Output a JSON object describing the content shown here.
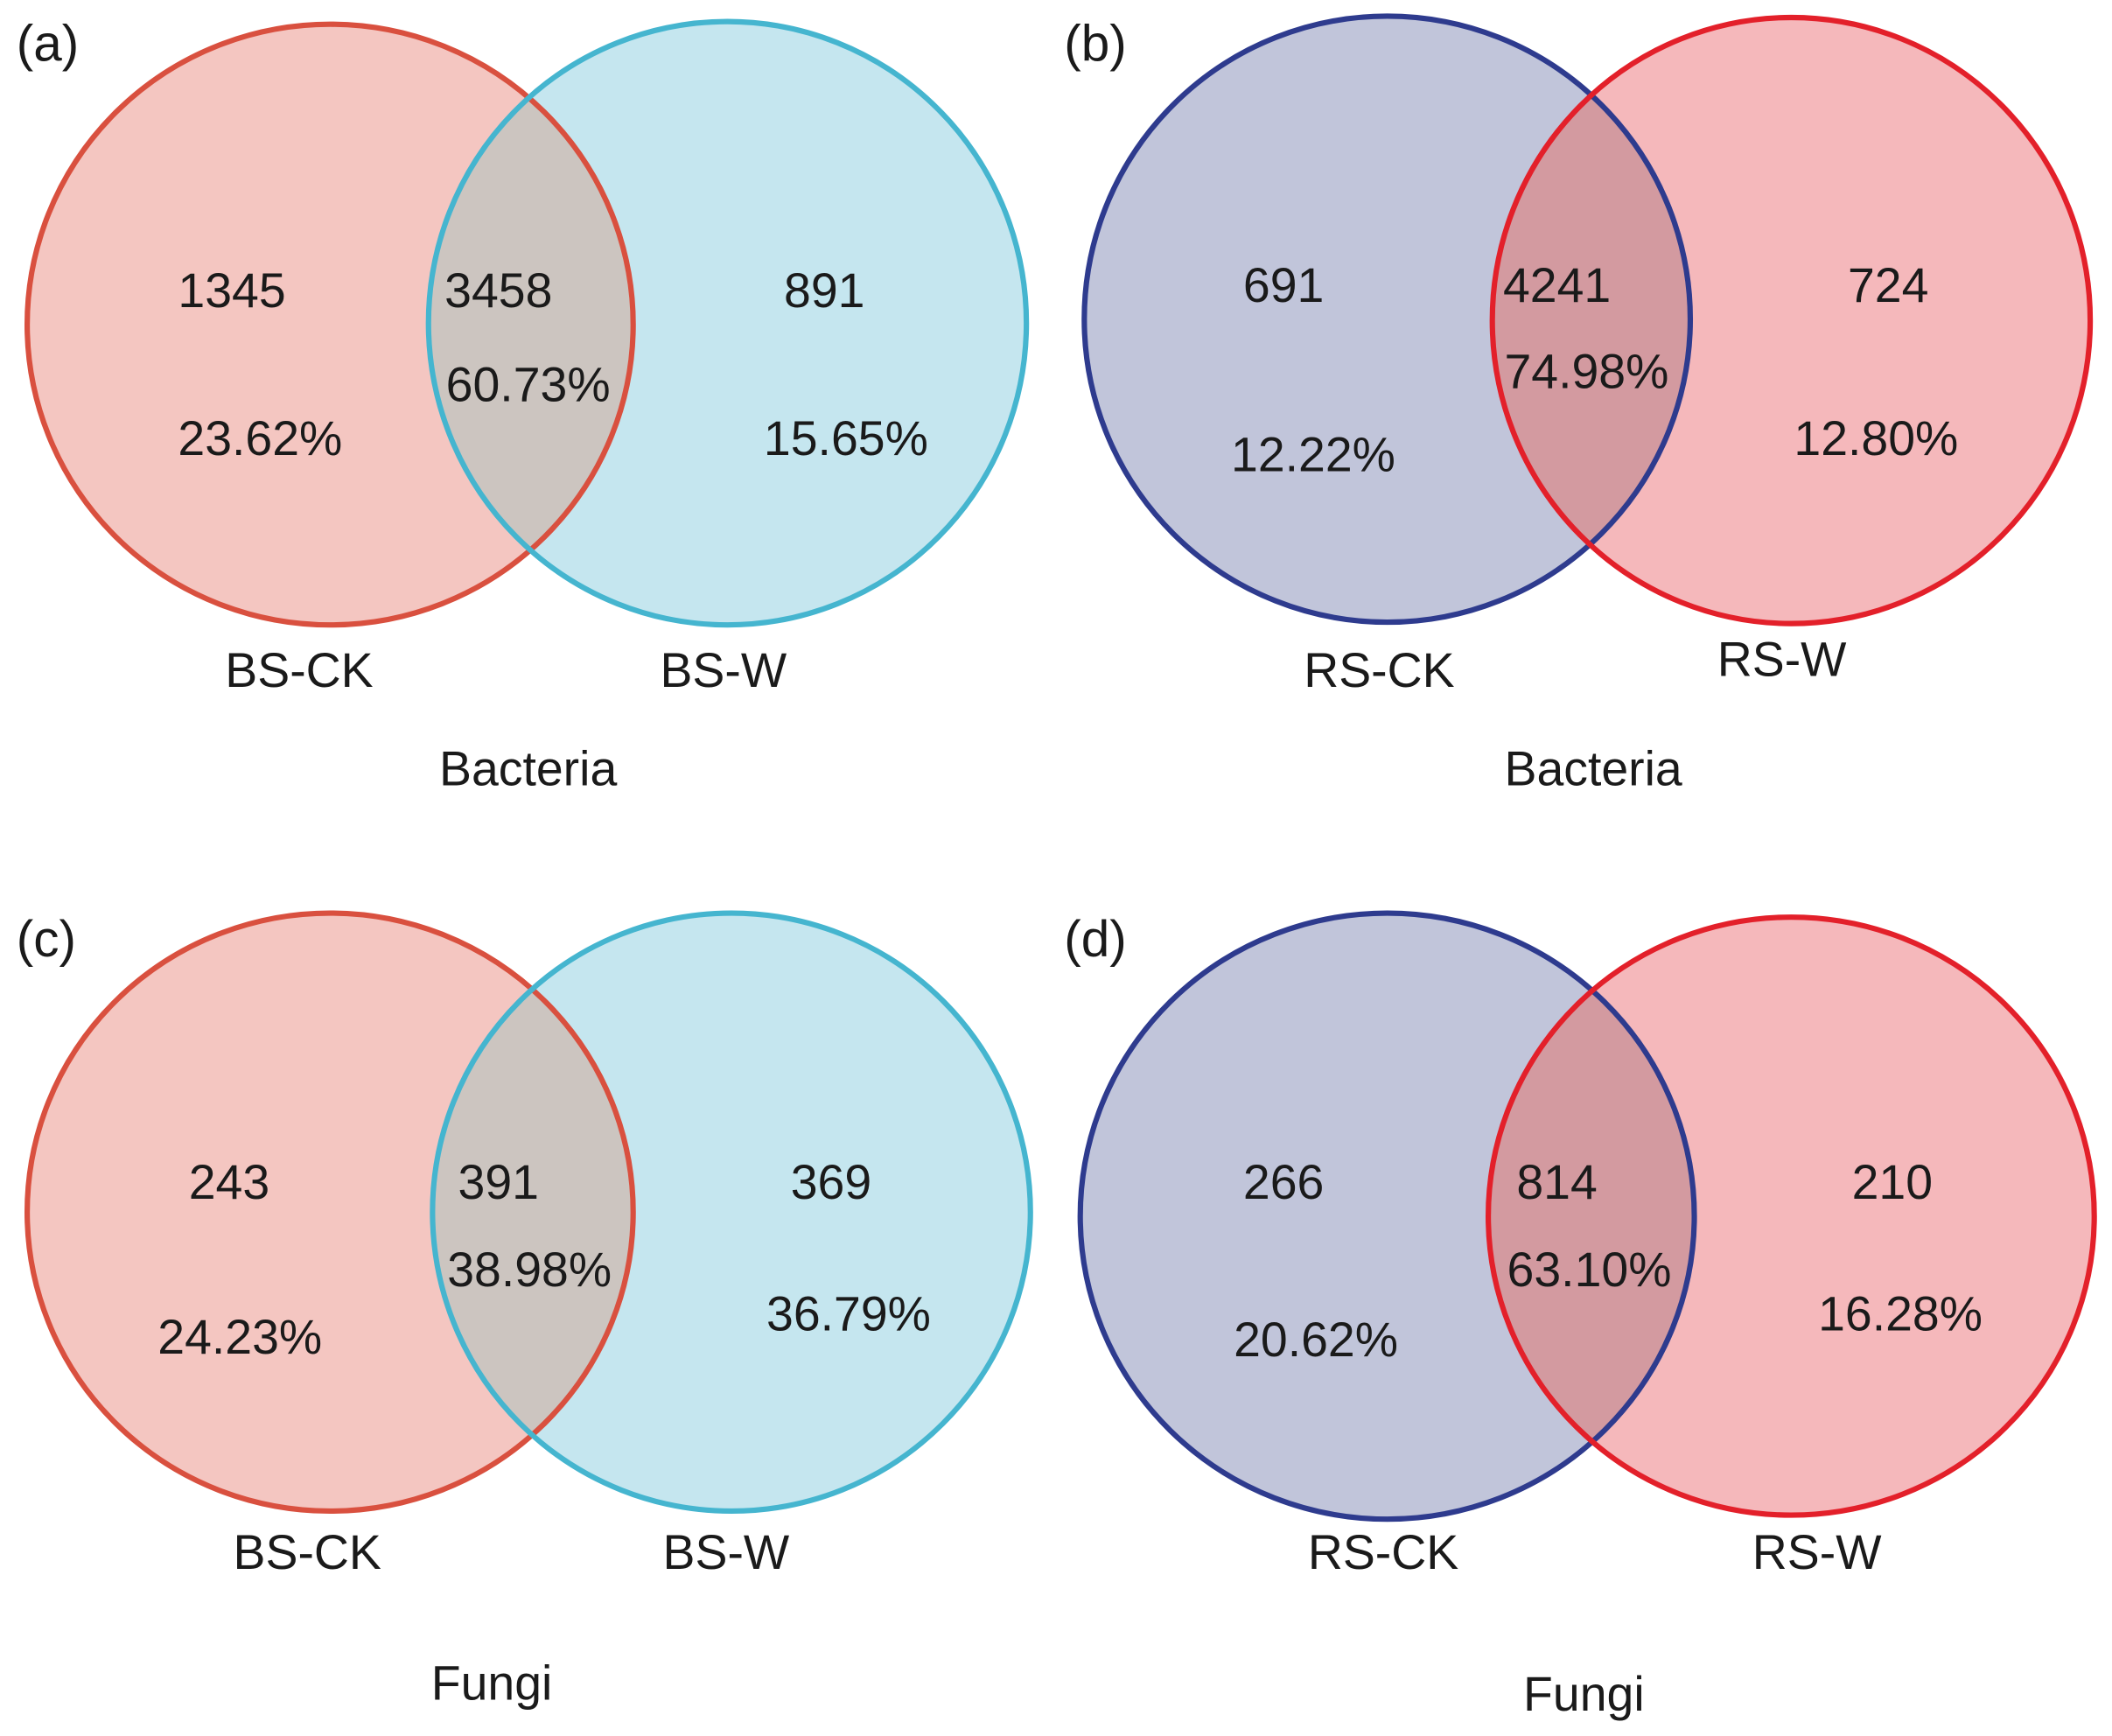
{
  "panels": [
    {
      "tag": "(a)",
      "left_label": "BS-CK",
      "right_label": "BS-W",
      "caption": "Bacteria",
      "left_only": "1345",
      "left_pct": "23.62%",
      "shared": "3458",
      "shared_pct": "60.73%",
      "right_only": "891",
      "right_pct": "15.65%",
      "colors": {
        "left_stroke": "#d9503f",
        "left_fill": "#f4c6c1",
        "right_stroke": "#45b5cf",
        "right_fill": "#c5e6ef",
        "overlap_fill": "#ccc5c0"
      }
    },
    {
      "tag": "(b)",
      "left_label": "RS-CK",
      "right_label": "RS-W",
      "caption": "Bacteria",
      "left_only": "691",
      "left_pct": "12.22%",
      "shared": "4241",
      "shared_pct": "74.98%",
      "right_only": "724",
      "right_pct": "12.80%",
      "colors": {
        "left_stroke": "#2e3b8e",
        "left_fill": "#c1c5da",
        "right_stroke": "#e3202a",
        "right_fill": "#f5b8bb",
        "overlap_fill": "#d39aa0"
      }
    },
    {
      "tag": "(c)",
      "left_label": "BS-CK",
      "right_label": "BS-W",
      "caption": "Fungi",
      "left_only": "243",
      "left_pct": "24.23%",
      "shared": "391",
      "shared_pct": "38.98%",
      "right_only": "369",
      "right_pct": "36.79%",
      "colors": {
        "left_stroke": "#d9503f",
        "left_fill": "#f4c6c1",
        "right_stroke": "#45b5cf",
        "right_fill": "#c5e6ef",
        "overlap_fill": "#ccc5c0"
      }
    },
    {
      "tag": "(d)",
      "left_label": "RS-CK",
      "right_label": "RS-W",
      "caption": "Fungi",
      "left_only": "266",
      "left_pct": "20.62%",
      "shared": "814",
      "shared_pct": "63.10%",
      "right_only": "210",
      "right_pct": "16.28%",
      "colors": {
        "left_stroke": "#2e3b8e",
        "left_fill": "#c1c5da",
        "right_stroke": "#e3202a",
        "right_fill": "#f5b8bb",
        "overlap_fill": "#d39aa0"
      }
    }
  ]
}
